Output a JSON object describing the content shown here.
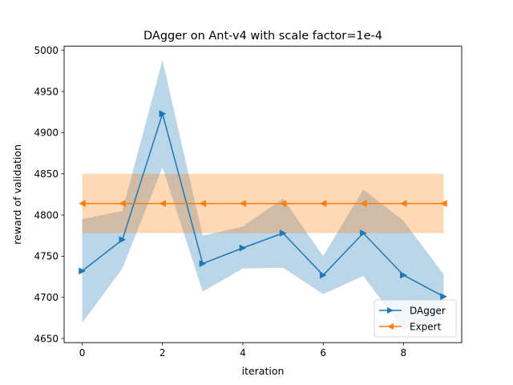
{
  "chart_data": {
    "type": "line",
    "title": "DAgger on Ant-v4 with scale factor=1e-4",
    "xlabel": "iteration",
    "ylabel": "reward of validation",
    "xlim": [
      -0.45,
      9.45
    ],
    "ylim": [
      4645,
      5005
    ],
    "xticks": [
      0,
      2,
      4,
      6,
      8
    ],
    "yticks": [
      4650,
      4700,
      4750,
      4800,
      4850,
      4900,
      4950,
      5000
    ],
    "grid": false,
    "legend_position": "lower-right",
    "x": [
      0,
      1,
      2,
      3,
      4,
      5,
      6,
      7,
      8,
      9
    ],
    "series": [
      {
        "name": "DAgger",
        "color": "#1f77b4",
        "marker": "triangle-right",
        "values": [
          4732,
          4770,
          4923,
          4741,
          4760,
          4778,
          4727,
          4778,
          4727,
          4701
        ],
        "band_upper": [
          4795,
          4805,
          4988,
          4775,
          4786,
          4820,
          4750,
          4831,
          4793,
          4728
        ],
        "band_lower": [
          4669,
          4735,
          4858,
          4707,
          4735,
          4736,
          4704,
          4726,
          4661,
          4674
        ]
      },
      {
        "name": "Expert",
        "color": "#ff7f0e",
        "marker": "triangle-left",
        "values": [
          4814,
          4814,
          4814,
          4814,
          4814,
          4814,
          4814,
          4814,
          4814,
          4814
        ],
        "band_upper": [
          4850,
          4850,
          4850,
          4850,
          4850,
          4850,
          4850,
          4850,
          4850,
          4850
        ],
        "band_lower": [
          4778,
          4778,
          4778,
          4778,
          4778,
          4778,
          4778,
          4778,
          4778,
          4778
        ]
      }
    ]
  }
}
